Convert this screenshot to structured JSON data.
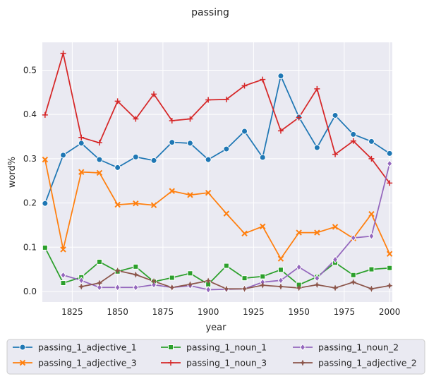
{
  "chart_data": {
    "type": "line",
    "title": "passing",
    "xlabel": "year",
    "ylabel": "word%",
    "xlim": [
      1808.5,
      2001.5
    ],
    "ylim": [
      -0.024,
      0.563
    ],
    "xticks": [
      1825,
      1850,
      1875,
      1900,
      1925,
      1950,
      1975,
      2000
    ],
    "yticks": [
      0.0,
      0.1,
      0.2,
      0.3,
      0.4,
      0.5
    ],
    "grid": true,
    "legend_position": "bottom",
    "series": [
      {
        "name": "passing_1_adjective_1",
        "color": "#1f77b4",
        "marker": "circle",
        "x": [
          1810,
          1820,
          1830,
          1840,
          1850,
          1860,
          1870,
          1880,
          1890,
          1900,
          1910,
          1920,
          1930,
          1940,
          1950,
          1960,
          1970,
          1980,
          1990,
          2000
        ],
        "y": [
          0.199,
          0.308,
          0.335,
          0.298,
          0.28,
          0.304,
          0.296,
          0.337,
          0.335,
          0.298,
          0.322,
          0.362,
          0.303,
          0.487,
          0.394,
          0.325,
          0.398,
          0.355,
          0.339,
          0.312
        ]
      },
      {
        "name": "passing_1_adjective_3",
        "color": "#ff7f0e",
        "marker": "x",
        "x": [
          1810,
          1820,
          1830,
          1840,
          1850,
          1860,
          1870,
          1880,
          1890,
          1900,
          1910,
          1920,
          1930,
          1940,
          1950,
          1960,
          1970,
          1980,
          1990,
          2000
        ],
        "y": [
          0.298,
          0.095,
          0.27,
          0.268,
          0.196,
          0.199,
          0.195,
          0.227,
          0.218,
          0.223,
          0.176,
          0.131,
          0.147,
          0.074,
          0.133,
          0.133,
          0.146,
          0.12,
          0.175,
          0.085
        ]
      },
      {
        "name": "passing_1_noun_1",
        "color": "#2ca02c",
        "marker": "square",
        "x": [
          1810,
          1820,
          1830,
          1840,
          1850,
          1860,
          1870,
          1880,
          1890,
          1900,
          1910,
          1920,
          1930,
          1940,
          1950,
          1960,
          1970,
          1980,
          1990,
          2000
        ],
        "y": [
          0.099,
          0.019,
          0.032,
          0.067,
          0.045,
          0.056,
          0.022,
          0.031,
          0.041,
          0.016,
          0.058,
          0.03,
          0.034,
          0.049,
          0.015,
          0.033,
          0.065,
          0.037,
          0.05,
          0.053
        ]
      },
      {
        "name": "passing_1_noun_3",
        "color": "#d62728",
        "marker": "plus",
        "x": [
          1810,
          1820,
          1830,
          1840,
          1850,
          1860,
          1870,
          1880,
          1890,
          1900,
          1910,
          1920,
          1930,
          1940,
          1950,
          1960,
          1970,
          1980,
          1990,
          2000
        ],
        "y": [
          0.399,
          0.538,
          0.348,
          0.336,
          0.43,
          0.39,
          0.446,
          0.386,
          0.39,
          0.433,
          0.434,
          0.465,
          0.479,
          0.363,
          0.393,
          0.458,
          0.31,
          0.34,
          0.3,
          0.245
        ]
      },
      {
        "name": "passing_1_noun_2",
        "color": "#9467bd",
        "marker": "diamond",
        "x": [
          1820,
          1830,
          1840,
          1850,
          1860,
          1870,
          1880,
          1890,
          1900,
          1910,
          1920,
          1930,
          1940,
          1950,
          1960,
          1970,
          1980,
          1990,
          2000
        ],
        "y": [
          0.037,
          0.025,
          0.009,
          0.009,
          0.009,
          0.015,
          0.009,
          0.013,
          0.004,
          0.005,
          0.006,
          0.021,
          0.025,
          0.055,
          0.03,
          0.072,
          0.121,
          0.125,
          0.289
        ]
      },
      {
        "name": "passing_1_adjective_2",
        "color": "#8c564b",
        "marker": "star",
        "x": [
          1830,
          1840,
          1850,
          1860,
          1870,
          1880,
          1890,
          1900,
          1910,
          1920,
          1930,
          1940,
          1950,
          1960,
          1970,
          1980,
          1990,
          2000
        ],
        "y": [
          0.011,
          0.019,
          0.047,
          0.038,
          0.023,
          0.009,
          0.016,
          0.024,
          0.006,
          0.006,
          0.014,
          0.011,
          0.008,
          0.015,
          0.008,
          0.021,
          0.006,
          0.013
        ]
      }
    ]
  }
}
